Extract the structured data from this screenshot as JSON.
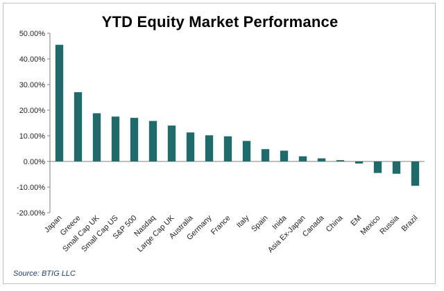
{
  "chart_data": {
    "type": "bar",
    "title": "YTD Equity Market Performance",
    "source": "Source: BTIG LLC",
    "categories": [
      "Japan",
      "Greece",
      "Small Cap UK",
      "Small Cap US",
      "S&P 500",
      "Nasdaq",
      "Large Cap UK",
      "Australia",
      "Germany",
      "France",
      "Italy",
      "Spain",
      "Inida",
      "Asia Ex-Japan",
      "Canada",
      "China",
      "EM",
      "Mexico",
      "Russia",
      "Brazil"
    ],
    "values": [
      45.5,
      27.0,
      18.8,
      17.5,
      17.0,
      15.8,
      14.0,
      11.3,
      10.2,
      9.8,
      8.0,
      4.8,
      4.2,
      2.0,
      1.2,
      0.5,
      -0.8,
      -4.5,
      -4.8,
      -9.5
    ],
    "yticks": [
      "50.00%",
      "40.00%",
      "30.00%",
      "20.00%",
      "10.00%",
      "0.00%",
      "-10.00%",
      "-20.00%"
    ],
    "ylim": [
      -20,
      50
    ],
    "grid": false,
    "bar_color": "#1f6b6b",
    "axis_color": "#7f7f7f"
  }
}
